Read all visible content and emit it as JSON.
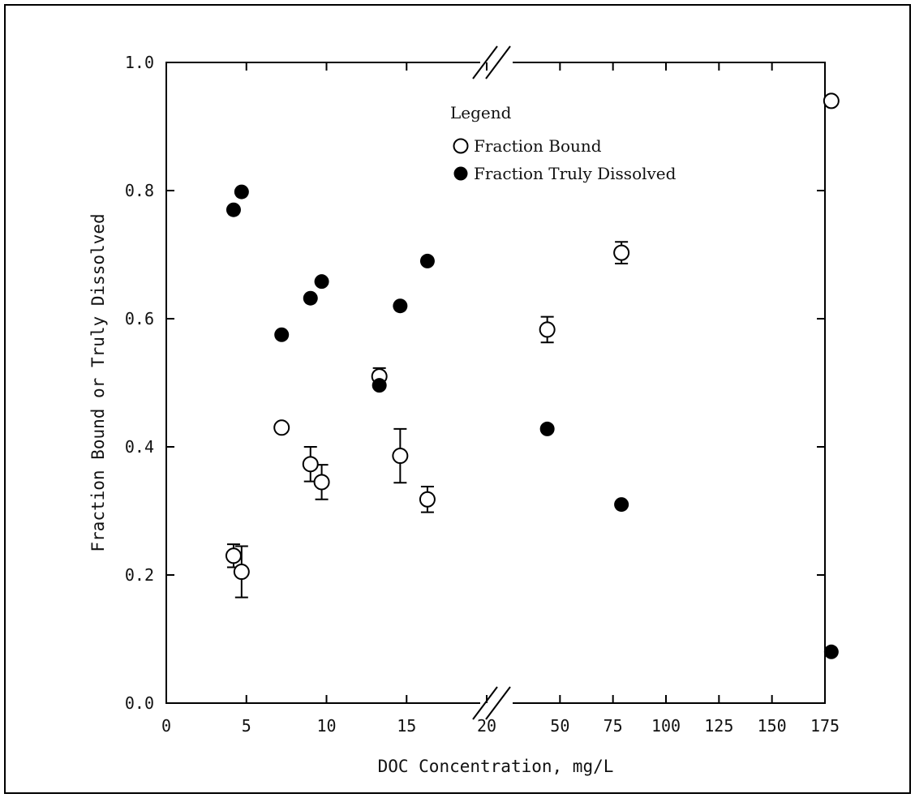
{
  "chart_data": {
    "type": "scatter",
    "title": "",
    "xlabel": "DOC Concentration, mg/L",
    "ylabel": "Fraction Bound or Truly Dissolved",
    "ylim": [
      0,
      1
    ],
    "x_axis": {
      "broken": true,
      "segments": [
        {
          "range": [
            0,
            20
          ],
          "ticks": [
            0,
            5,
            10,
            15,
            20
          ]
        },
        {
          "range": [
            25,
            175
          ],
          "ticks": [
            50,
            75,
            100,
            125,
            150,
            175
          ]
        }
      ],
      "tick_labels": [
        "0",
        "5",
        "10",
        "15",
        "20",
        "50",
        "75",
        "100",
        "125",
        "150",
        "175"
      ]
    },
    "y_axis": {
      "ticks": [
        0.0,
        0.2,
        0.4,
        0.6,
        0.8,
        1.0
      ],
      "tick_labels": [
        "0.0",
        "0.2",
        "0.4",
        "0.6",
        "0.8",
        "1.0"
      ]
    },
    "grid": false,
    "legend": {
      "title": "Legend",
      "placement": "top-center",
      "entries": [
        "Fraction Bound",
        "Fraction Truly Dissolved"
      ]
    },
    "series": [
      {
        "name": "Fraction Bound",
        "marker": "open-circle",
        "points": [
          {
            "x": 4.2,
            "y": 0.23,
            "err": 0.018
          },
          {
            "x": 4.7,
            "y": 0.205,
            "err": 0.04
          },
          {
            "x": 7.2,
            "y": 0.43,
            "err": 0
          },
          {
            "x": 9.0,
            "y": 0.373,
            "err": 0.027
          },
          {
            "x": 9.7,
            "y": 0.345,
            "err": 0.027
          },
          {
            "x": 13.3,
            "y": 0.51,
            "err": 0.013
          },
          {
            "x": 14.6,
            "y": 0.386,
            "err": 0.042
          },
          {
            "x": 16.3,
            "y": 0.318,
            "err": 0.02
          },
          {
            "x": 44,
            "y": 0.583,
            "err": 0.02
          },
          {
            "x": 79,
            "y": 0.703,
            "err": 0.017
          },
          {
            "x": 178,
            "y": 0.94,
            "err": 0
          }
        ]
      },
      {
        "name": "Fraction Truly Dissolved",
        "marker": "filled-circle",
        "points": [
          {
            "x": 4.2,
            "y": 0.77
          },
          {
            "x": 4.7,
            "y": 0.798
          },
          {
            "x": 7.2,
            "y": 0.575
          },
          {
            "x": 9.0,
            "y": 0.632
          },
          {
            "x": 9.7,
            "y": 0.658
          },
          {
            "x": 13.3,
            "y": 0.496
          },
          {
            "x": 14.6,
            "y": 0.62
          },
          {
            "x": 16.3,
            "y": 0.69
          },
          {
            "x": 44,
            "y": 0.428
          },
          {
            "x": 79,
            "y": 0.31
          },
          {
            "x": 178,
            "y": 0.08
          }
        ]
      }
    ]
  }
}
